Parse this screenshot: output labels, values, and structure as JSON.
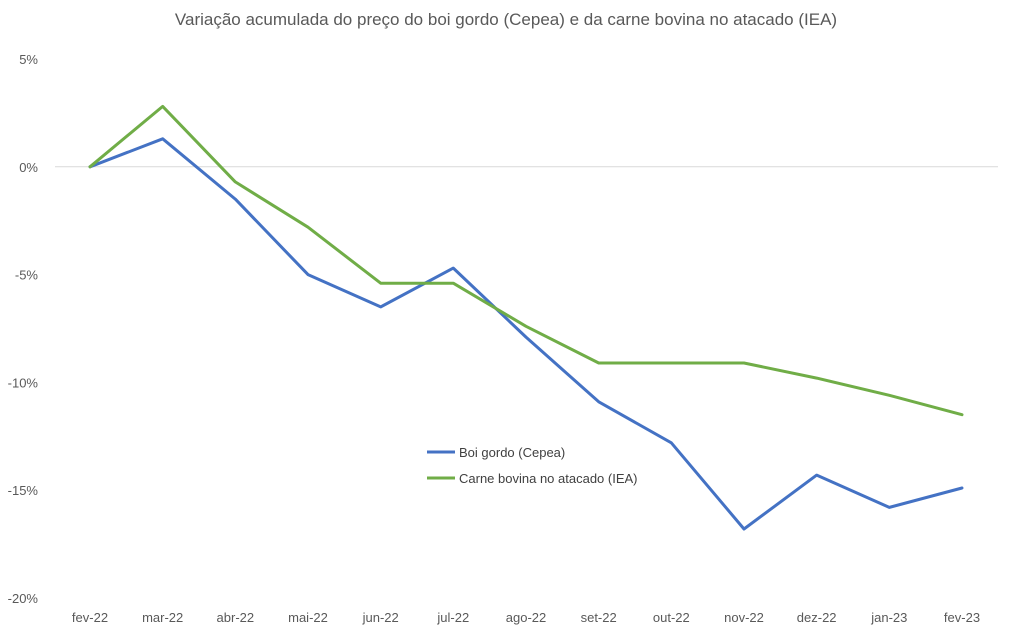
{
  "chart_data": {
    "type": "line",
    "title": "Variação acumulada do preço do boi gordo (Cepea) e da carne bovina no atacado (IEA)",
    "xlabel": "",
    "ylabel": "",
    "categories": [
      "fev-22",
      "mar-22",
      "abr-22",
      "mai-22",
      "jun-22",
      "jul-22",
      "ago-22",
      "set-22",
      "out-22",
      "nov-22",
      "dez-22",
      "jan-23",
      "fev-23"
    ],
    "y_ticks": [
      5,
      0,
      -5,
      -10,
      -15,
      -20
    ],
    "y_tick_labels": [
      "5%",
      "0%",
      "-5%",
      "-10%",
      "-15%",
      "-20%"
    ],
    "ylim": [
      -20,
      5
    ],
    "grid": "zero line only",
    "legend_position": "center",
    "series": [
      {
        "name": "Boi gordo (Cepea)",
        "color": "#4472c4",
        "values": [
          0,
          1.3,
          -1.5,
          -5.0,
          -6.5,
          -4.7,
          -7.9,
          -10.9,
          -12.8,
          -16.8,
          -14.3,
          -15.8,
          -14.9
        ]
      },
      {
        "name": "Carne bovina no atacado (IEA)",
        "color": "#70ad47",
        "values": [
          0,
          2.8,
          -0.7,
          -2.8,
          -5.4,
          -5.4,
          -7.4,
          -9.1,
          -9.1,
          -9.1,
          -9.8,
          -10.6,
          -11.5
        ]
      }
    ]
  }
}
